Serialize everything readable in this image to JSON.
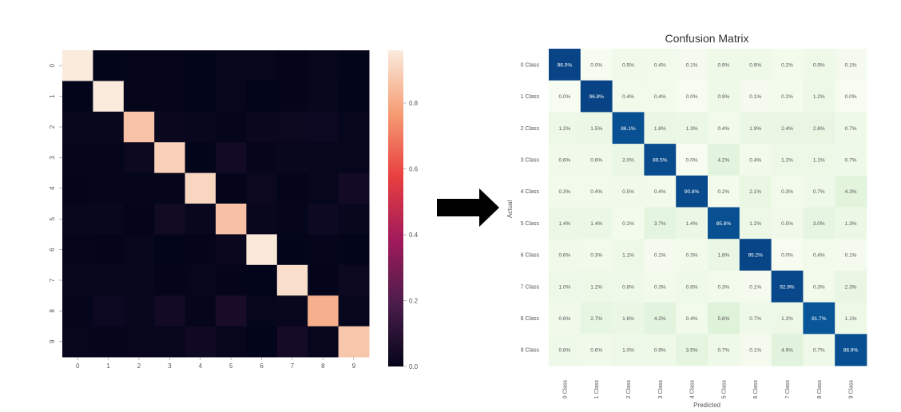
{
  "chart_data": [
    {
      "type": "heatmap",
      "x_tick_labels": [
        "0",
        "1",
        "2",
        "3",
        "4",
        "5",
        "6",
        "7",
        "8",
        "9"
      ],
      "y_tick_labels": [
        "0",
        "1",
        "2",
        "3",
        "4",
        "5",
        "6",
        "7",
        "8",
        "9"
      ],
      "colorbar": {
        "range": [
          0.0,
          0.96
        ],
        "tick_values": [
          0.0,
          0.2,
          0.4,
          0.6,
          0.8
        ],
        "tick_labels": [
          "0.0",
          "0.2",
          "0.4",
          "0.6",
          "0.8"
        ],
        "colormap": [
          "#03051a",
          "#4c1d4b",
          "#a11a5b",
          "#e83f3f",
          "#f69c73",
          "#faebdd"
        ]
      },
      "values": [
        [
          0.96,
          0.0,
          0.005,
          0.004,
          0.001,
          0.009,
          0.009,
          0.002,
          0.009,
          0.001
        ],
        [
          0.0,
          0.968,
          0.004,
          0.004,
          0.0,
          0.009,
          0.001,
          0.002,
          0.012,
          0.0
        ],
        [
          0.012,
          0.015,
          0.861,
          0.018,
          0.013,
          0.004,
          0.019,
          0.024,
          0.026,
          0.007
        ],
        [
          0.006,
          0.006,
          0.02,
          0.895,
          0.0,
          0.042,
          0.004,
          0.012,
          0.011,
          0.007
        ],
        [
          0.003,
          0.004,
          0.005,
          0.004,
          0.908,
          0.002,
          0.021,
          0.003,
          0.007,
          0.043
        ],
        [
          0.014,
          0.014,
          0.002,
          0.037,
          0.014,
          0.858,
          0.012,
          0.005,
          0.03,
          0.013
        ],
        [
          0.006,
          0.003,
          0.011,
          0.001,
          0.003,
          0.018,
          0.952,
          0.0,
          0.004,
          0.001
        ],
        [
          0.01,
          0.012,
          0.008,
          0.003,
          0.008,
          0.003,
          0.001,
          0.929,
          0.003,
          0.023
        ],
        [
          0.006,
          0.027,
          0.016,
          0.042,
          0.004,
          0.056,
          0.007,
          0.012,
          0.817,
          0.011
        ],
        [
          0.008,
          0.006,
          0.01,
          0.009,
          0.035,
          0.007,
          0.001,
          0.049,
          0.007,
          0.869
        ]
      ]
    },
    {
      "type": "heatmap",
      "title": "Confusion Matrix",
      "xlabel": "Predicted",
      "ylabel": "Actual",
      "x_tick_labels": [
        "0 Class",
        "1 Class",
        "2 Class",
        "3 Class",
        "4 Class",
        "5 Class",
        "6 Class",
        "7 Class",
        "8 Class",
        "9 Class"
      ],
      "y_tick_labels": [
        "0 Class",
        "1 Class",
        "2 Class",
        "3 Class",
        "4 Class",
        "5 Class",
        "6 Class",
        "7 Class",
        "8 Class",
        "9 Class"
      ],
      "colormap": [
        "#f7fcf0",
        "#e0f3db",
        "#a8ddb5",
        "#4eb3d3",
        "#0868ac",
        "#084081"
      ],
      "value_range": [
        0.0,
        1.0
      ],
      "values": [
        [
          "96.0%",
          "0.0%",
          "0.5%",
          "0.4%",
          "0.1%",
          "0.9%",
          "0.9%",
          "0.2%",
          "0.9%",
          "0.1%"
        ],
        [
          "0.0%",
          "96.8%",
          "0.4%",
          "0.4%",
          "0.0%",
          "0.9%",
          "0.1%",
          "0.2%",
          "1.2%",
          "0.0%"
        ],
        [
          "1.2%",
          "1.5%",
          "86.1%",
          "1.8%",
          "1.3%",
          "0.4%",
          "1.9%",
          "2.4%",
          "2.6%",
          "0.7%"
        ],
        [
          "0.6%",
          "0.6%",
          "2.0%",
          "89.5%",
          "0.0%",
          "4.2%",
          "0.4%",
          "1.2%",
          "1.1%",
          "0.7%"
        ],
        [
          "0.3%",
          "0.4%",
          "0.5%",
          "0.4%",
          "90.8%",
          "0.2%",
          "2.1%",
          "0.3%",
          "0.7%",
          "4.3%"
        ],
        [
          "1.4%",
          "1.4%",
          "0.2%",
          "3.7%",
          "1.4%",
          "85.8%",
          "1.2%",
          "0.5%",
          "3.0%",
          "1.3%"
        ],
        [
          "0.6%",
          "0.3%",
          "1.1%",
          "0.1%",
          "0.3%",
          "1.8%",
          "95.2%",
          "0.0%",
          "0.4%",
          "0.1%"
        ],
        [
          "1.0%",
          "1.2%",
          "0.8%",
          "0.3%",
          "0.8%",
          "0.3%",
          "0.1%",
          "92.9%",
          "0.3%",
          "2.3%"
        ],
        [
          "0.6%",
          "2.7%",
          "1.6%",
          "4.2%",
          "0.4%",
          "5.6%",
          "0.7%",
          "1.2%",
          "81.7%",
          "1.1%"
        ],
        [
          "0.8%",
          "0.6%",
          "1.0%",
          "0.9%",
          "3.5%",
          "0.7%",
          "0.1%",
          "4.9%",
          "0.7%",
          "86.9%"
        ]
      ]
    }
  ],
  "arrow": {
    "icon": "right-arrow-icon",
    "color": "#000000"
  }
}
